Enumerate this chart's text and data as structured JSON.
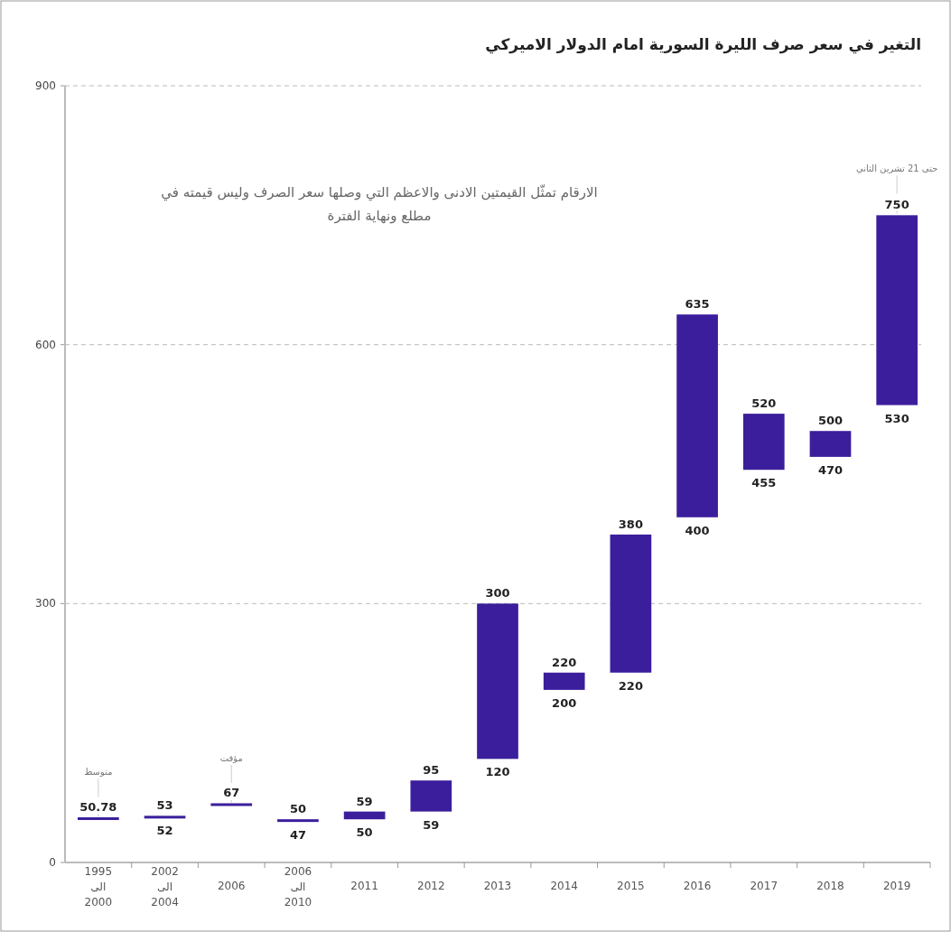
{
  "chart_data": {
    "type": "bar",
    "title": "التغير في سعر صرف الليرة السورية امام الدولار الاميركي",
    "categories": [
      "1995\nالى\n2000",
      "2002\nالى\n2004",
      "2006",
      "2006\nالى\n2010",
      "2011",
      "2012",
      "2013",
      "2014",
      "2015",
      "2016",
      "2017",
      "2018",
      "2019"
    ],
    "base": [
      50.78,
      52,
      67,
      47,
      50,
      59,
      120,
      200,
      220,
      400,
      455,
      470,
      530
    ],
    "values": [
      0,
      1,
      0,
      3,
      9,
      36,
      180,
      20,
      160,
      235,
      65,
      30,
      220
    ],
    "value_labels": [
      "50.78",
      "53",
      "67",
      "50",
      "59",
      "95",
      "300",
      "220",
      "380",
      "635",
      "520",
      "500",
      "750"
    ],
    "color": "#3b1e9c",
    "ylim": [
      0,
      900
    ],
    "yticks": [
      0,
      300,
      600,
      900
    ],
    "grid": "y",
    "annotations": [
      "الارقام تمثّل القيمتين الادنى والاعظم التي وصلها سعر الصرف وليس قيمته في مطلع ونهاية الفترة",
      {
        "text": "متوسط",
        "x": "1995\nالى\n2000"
      },
      {
        "text": "مؤقت",
        "x": "2006"
      },
      {
        "text": "حتى 21 تشرين الثاني",
        "x": "2019"
      },
      {
        "text": "52",
        "x": "2002\nالى\n2004",
        "y": 52
      },
      {
        "text": "47",
        "x": "2006\nالى\n2010",
        "y": 47
      },
      {
        "text": "50",
        "x": "2011",
        "y": 50
      },
      {
        "text": "59",
        "x": "2012",
        "y": 59
      },
      {
        "text": "120",
        "x": "2013",
        "y": 120
      },
      {
        "text": "200",
        "x": "2014",
        "y": 200
      },
      {
        "text": "220",
        "x": "2015",
        "y": 220
      },
      {
        "text": "400",
        "x": "2016",
        "y": 400
      },
      {
        "text": "455",
        "x": "2017",
        "y": 455
      },
      {
        "text": "470",
        "x": "2018",
        "y": 470
      },
      {
        "text": "530",
        "x": "2019",
        "y": 530
      }
    ]
  }
}
